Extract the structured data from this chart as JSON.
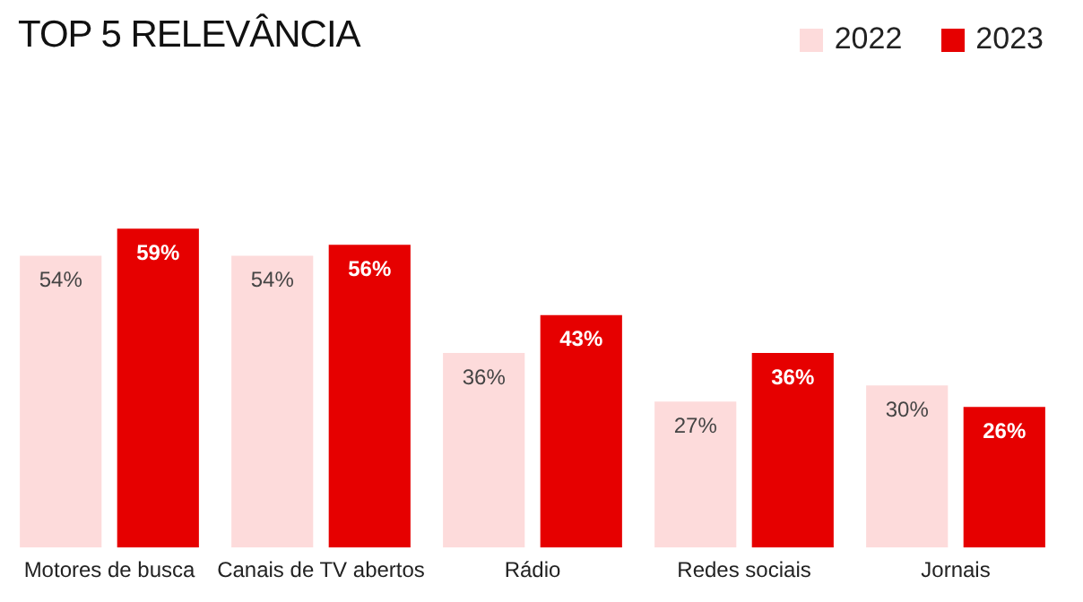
{
  "chart_data": {
    "type": "bar",
    "title": "TOP 5 RELEVÂNCIA",
    "categories": [
      "Motores de busca",
      "Canais de TV abertos",
      "Rádio",
      "Redes sociais",
      "Jornais"
    ],
    "legend": "top right",
    "grid": false,
    "series": [
      {
        "name": "2022",
        "color": "#fddbdb",
        "values": [
          54,
          54,
          36,
          27,
          30
        ],
        "value_labels": [
          "54%",
          "54%",
          "36%",
          "27%",
          "30%"
        ]
      },
      {
        "name": "2023",
        "color": "#e60000",
        "values": [
          59,
          56,
          43,
          36,
          26
        ],
        "value_labels": [
          "59%",
          "56%",
          "43%",
          "36%",
          "26%"
        ]
      }
    ]
  }
}
